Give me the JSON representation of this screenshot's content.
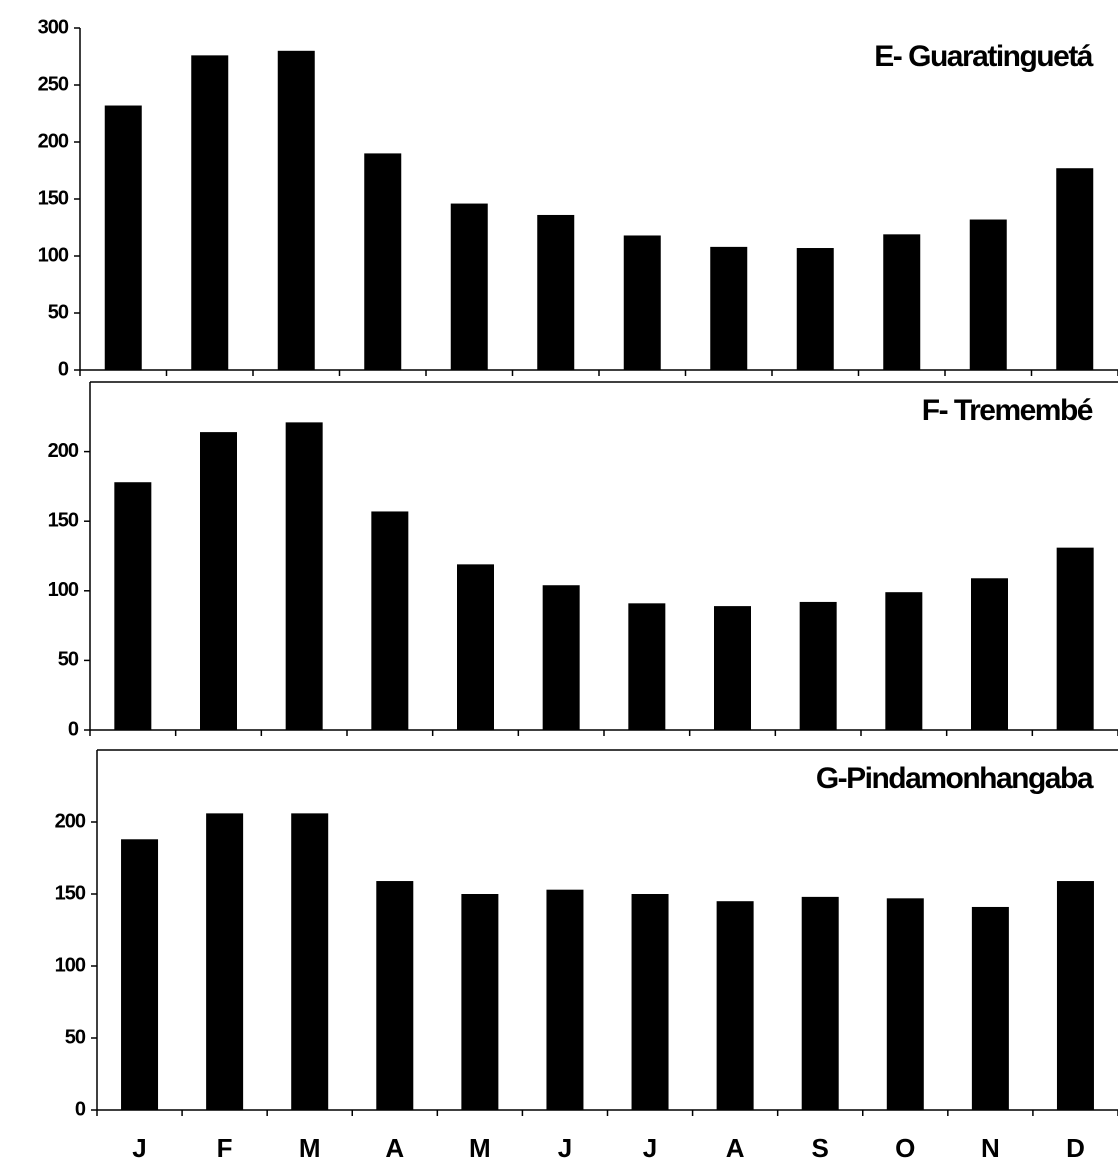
{
  "chart_data": [
    {
      "type": "bar",
      "title": "E- Guaratinguetá",
      "categories": [
        null,
        null,
        null,
        null,
        null,
        null,
        null,
        null,
        null,
        null,
        null,
        null
      ],
      "values": [
        232,
        276,
        280,
        190,
        146,
        136,
        118,
        108,
        107,
        119,
        132,
        177
      ],
      "color": "#000000",
      "ylim": [
        0,
        300
      ],
      "yticks": [
        0,
        50,
        100,
        150,
        200,
        250,
        300
      ]
    },
    {
      "type": "bar",
      "title": "F- Tremembé",
      "categories": [
        null,
        null,
        null,
        null,
        null,
        null,
        null,
        null,
        null,
        null,
        null,
        null
      ],
      "values": [
        178,
        214,
        221,
        157,
        119,
        104,
        91,
        89,
        92,
        99,
        109,
        131
      ],
      "color": "#000000",
      "ylim": [
        0,
        250
      ],
      "yticks": [
        0,
        50,
        100,
        150,
        200
      ]
    },
    {
      "type": "bar",
      "title": "G-Pindamonhangaba",
      "categories": [
        "J",
        "F",
        "M",
        "A",
        "M",
        "J",
        "J",
        "A",
        "S",
        "O",
        "N",
        "D"
      ],
      "values": [
        188,
        206,
        206,
        159,
        150,
        153,
        150,
        145,
        148,
        147,
        141,
        159
      ],
      "color": "#000000",
      "ylim": [
        0,
        250
      ],
      "yticks": [
        0,
        50,
        100,
        150,
        200
      ]
    }
  ]
}
